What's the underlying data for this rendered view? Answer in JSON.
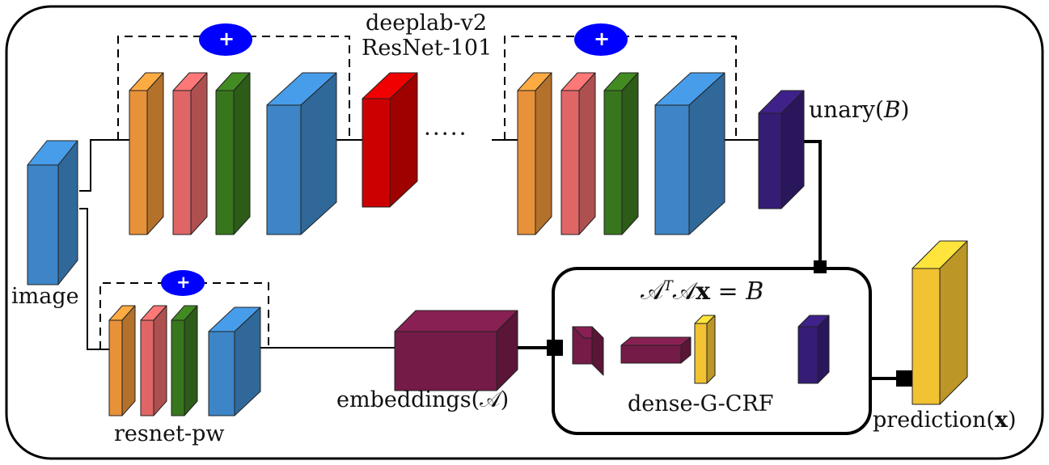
{
  "labels": {
    "deeplab_line1": "deeplab-v2",
    "deeplab_line2": "ResNet-101",
    "dots": "·····",
    "image": "image",
    "resnet_pw": "resnet-pw",
    "unary_prefix": "unary(",
    "unary_var": "B",
    "unary_suffix": ")",
    "embeddings_prefix": "embeddings(",
    "embeddings_var": "𝒜",
    "embeddings_suffix": ")",
    "prediction_prefix": "prediction(",
    "prediction_var": "x",
    "prediction_suffix": ")",
    "crf_name": "dense-G-CRF",
    "equation": {
      "a1": "𝒜",
      "sup": "T",
      "a2": "𝒜",
      "x": "x",
      "eq": " = ",
      "b": "B"
    },
    "plus_symbol": "+"
  },
  "colors": {
    "orange": "#E79139",
    "salmon": "#E06666",
    "green": "#38761D",
    "blue": "#3D85C6",
    "red": "#CC0000",
    "indigo": "#351C75",
    "maroon": "#741B47",
    "gold": "#F1C232",
    "plus_fill": "#0000FF"
  }
}
